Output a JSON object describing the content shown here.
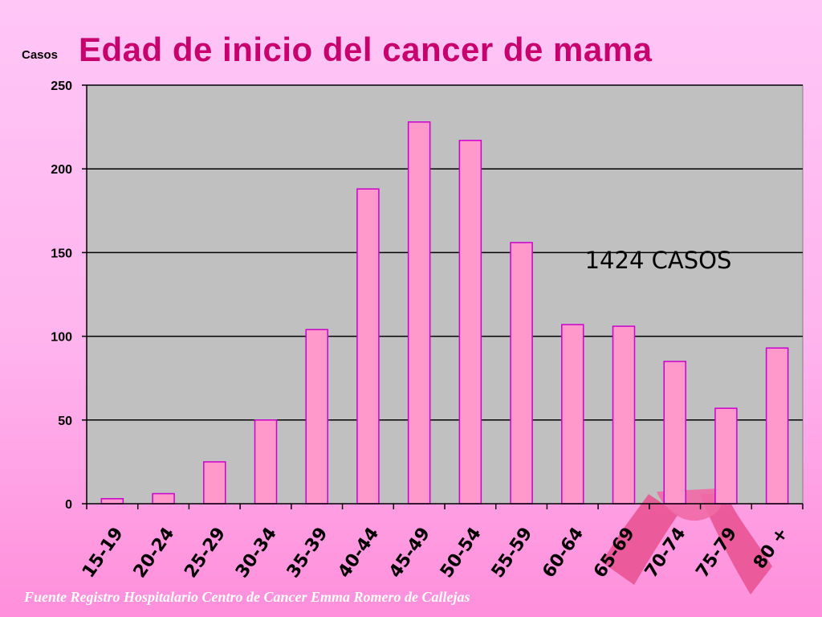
{
  "slide": {
    "source_note": "Fuente Registro Hospitalario Centro de Cancer Emma Romero de Callejas"
  },
  "colors": {
    "title": "#c8006e",
    "bar_fill": "#ff99cc",
    "bar_stroke": "#cc00cc",
    "plot_bg": "#c0c0c0",
    "ribbon": "#e8508f"
  },
  "decoration": {
    "ribbon_icon": "pink-ribbon-icon"
  },
  "chart_data": {
    "type": "bar",
    "title": "Edad de inicio del cancer de mama",
    "ylabel": "Casos",
    "xlabel": "",
    "annotation": "1424 CASOS",
    "categories": [
      "15-19",
      "20-24",
      "25-29",
      "30-34",
      "35-39",
      "40-44",
      "45-49",
      "50-54",
      "55-59",
      "60-64",
      "65-69",
      "70-74",
      "75-79",
      "80 +"
    ],
    "values": [
      3,
      6,
      25,
      50,
      104,
      188,
      228,
      217,
      156,
      107,
      106,
      85,
      57,
      93
    ],
    "ylim": [
      0,
      250
    ],
    "yticks": [
      0,
      50,
      100,
      150,
      200,
      250
    ],
    "grid": true,
    "legend": "none"
  }
}
